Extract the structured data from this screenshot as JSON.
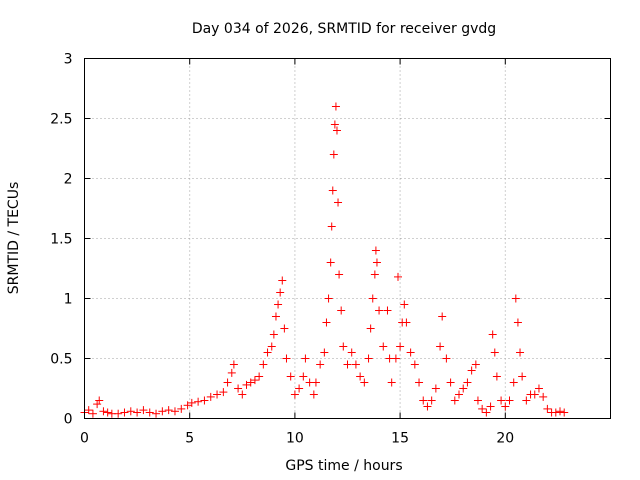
{
  "chart_data": {
    "type": "scatter",
    "title": "Day 034 of 2026, SRMTID for receiver gvdg",
    "xlabel": "GPS time / hours",
    "ylabel": "SRMTID / TECUs",
    "xlim": [
      0,
      25
    ],
    "ylim": [
      0,
      3
    ],
    "x_ticks": [
      0,
      5,
      10,
      15,
      20
    ],
    "y_ticks": [
      0,
      0.5,
      1,
      1.5,
      2,
      2.5,
      3
    ],
    "x_tick_labels": [
      "0",
      "5",
      "10",
      "15",
      "20"
    ],
    "y_tick_labels": [
      "0",
      "0.5",
      "1",
      "1.5",
      "2",
      "2.5",
      "3"
    ],
    "grid": true,
    "marker": "+",
    "series": [
      {
        "name": "SRMTID",
        "color": "#ff0000",
        "points": [
          [
            0.0,
            0.05
          ],
          [
            0.2,
            0.07
          ],
          [
            0.4,
            0.04
          ],
          [
            0.6,
            0.12
          ],
          [
            0.7,
            0.15
          ],
          [
            0.9,
            0.06
          ],
          [
            1.1,
            0.05
          ],
          [
            1.3,
            0.04
          ],
          [
            1.6,
            0.04
          ],
          [
            1.9,
            0.05
          ],
          [
            2.2,
            0.06
          ],
          [
            2.5,
            0.05
          ],
          [
            2.8,
            0.07
          ],
          [
            3.1,
            0.05
          ],
          [
            3.4,
            0.04
          ],
          [
            3.7,
            0.06
          ],
          [
            4.0,
            0.07
          ],
          [
            4.3,
            0.06
          ],
          [
            4.6,
            0.08
          ],
          [
            4.9,
            0.11
          ],
          [
            5.1,
            0.13
          ],
          [
            5.4,
            0.14
          ],
          [
            5.7,
            0.15
          ],
          [
            6.0,
            0.18
          ],
          [
            6.3,
            0.2
          ],
          [
            6.6,
            0.22
          ],
          [
            6.8,
            0.3
          ],
          [
            7.0,
            0.38
          ],
          [
            7.1,
            0.45
          ],
          [
            7.3,
            0.25
          ],
          [
            7.5,
            0.2
          ],
          [
            7.7,
            0.28
          ],
          [
            7.9,
            0.3
          ],
          [
            8.1,
            0.32
          ],
          [
            8.3,
            0.35
          ],
          [
            8.5,
            0.45
          ],
          [
            8.7,
            0.55
          ],
          [
            8.9,
            0.6
          ],
          [
            9.0,
            0.7
          ],
          [
            9.1,
            0.85
          ],
          [
            9.2,
            0.95
          ],
          [
            9.3,
            1.05
          ],
          [
            9.4,
            1.15
          ],
          [
            9.5,
            0.75
          ],
          [
            9.6,
            0.5
          ],
          [
            9.8,
            0.35
          ],
          [
            10.0,
            0.2
          ],
          [
            10.2,
            0.25
          ],
          [
            10.4,
            0.35
          ],
          [
            10.5,
            0.5
          ],
          [
            10.7,
            0.3
          ],
          [
            10.9,
            0.2
          ],
          [
            11.0,
            0.3
          ],
          [
            11.2,
            0.45
          ],
          [
            11.4,
            0.55
          ],
          [
            11.5,
            0.8
          ],
          [
            11.6,
            1.0
          ],
          [
            11.7,
            1.3
          ],
          [
            11.75,
            1.6
          ],
          [
            11.8,
            1.9
          ],
          [
            11.85,
            2.2
          ],
          [
            11.9,
            2.45
          ],
          [
            11.95,
            2.6
          ],
          [
            12.0,
            2.4
          ],
          [
            12.05,
            1.8
          ],
          [
            12.1,
            1.2
          ],
          [
            12.2,
            0.9
          ],
          [
            12.3,
            0.6
          ],
          [
            12.5,
            0.45
          ],
          [
            12.7,
            0.55
          ],
          [
            12.9,
            0.45
          ],
          [
            13.1,
            0.35
          ],
          [
            13.3,
            0.3
          ],
          [
            13.5,
            0.5
          ],
          [
            13.6,
            0.75
          ],
          [
            13.7,
            1.0
          ],
          [
            13.8,
            1.2
          ],
          [
            13.85,
            1.4
          ],
          [
            13.9,
            1.3
          ],
          [
            14.0,
            0.9
          ],
          [
            14.2,
            0.6
          ],
          [
            14.4,
            0.9
          ],
          [
            14.5,
            0.5
          ],
          [
            14.6,
            0.3
          ],
          [
            14.8,
            0.5
          ],
          [
            14.9,
            1.18
          ],
          [
            15.0,
            0.6
          ],
          [
            15.1,
            0.8
          ],
          [
            15.2,
            0.95
          ],
          [
            15.3,
            0.8
          ],
          [
            15.5,
            0.55
          ],
          [
            15.7,
            0.45
          ],
          [
            15.9,
            0.3
          ],
          [
            16.1,
            0.15
          ],
          [
            16.3,
            0.1
          ],
          [
            16.5,
            0.15
          ],
          [
            16.7,
            0.25
          ],
          [
            16.9,
            0.6
          ],
          [
            17.0,
            0.85
          ],
          [
            17.2,
            0.5
          ],
          [
            17.4,
            0.3
          ],
          [
            17.6,
            0.15
          ],
          [
            17.8,
            0.2
          ],
          [
            18.0,
            0.25
          ],
          [
            18.2,
            0.3
          ],
          [
            18.4,
            0.4
          ],
          [
            18.6,
            0.45
          ],
          [
            18.7,
            0.15
          ],
          [
            18.9,
            0.08
          ],
          [
            19.1,
            0.05
          ],
          [
            19.3,
            0.1
          ],
          [
            19.4,
            0.7
          ],
          [
            19.5,
            0.55
          ],
          [
            19.6,
            0.35
          ],
          [
            19.8,
            0.15
          ],
          [
            20.0,
            0.1
          ],
          [
            20.2,
            0.15
          ],
          [
            20.4,
            0.3
          ],
          [
            20.5,
            1.0
          ],
          [
            20.6,
            0.8
          ],
          [
            20.7,
            0.55
          ],
          [
            20.8,
            0.35
          ],
          [
            21.0,
            0.15
          ],
          [
            21.2,
            0.2
          ],
          [
            21.4,
            0.2
          ],
          [
            21.6,
            0.25
          ],
          [
            21.8,
            0.18
          ],
          [
            22.0,
            0.08
          ],
          [
            22.2,
            0.05
          ],
          [
            22.4,
            0.05
          ],
          [
            22.6,
            0.06
          ],
          [
            22.8,
            0.05
          ]
        ]
      }
    ]
  }
}
